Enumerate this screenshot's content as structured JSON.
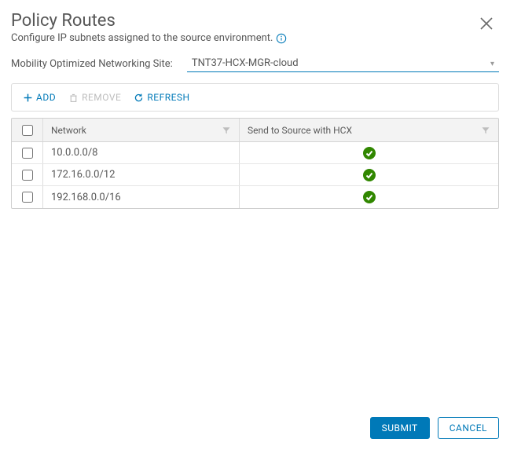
{
  "header": {
    "title": "Policy Routes",
    "subtitle": "Configure IP subnets assigned to the source environment."
  },
  "site": {
    "label": "Mobility Optimized Networking Site:",
    "value": "TNT37-HCX-MGR-cloud"
  },
  "toolbar": {
    "add": "ADD",
    "remove": "REMOVE",
    "refresh": "REFRESH"
  },
  "columns": {
    "network": "Network",
    "hcx": "Send to Source with HCX"
  },
  "rows": [
    {
      "network": "10.0.0.0/8",
      "hcx_ok": true
    },
    {
      "network": "172.16.0.0/12",
      "hcx_ok": true
    },
    {
      "network": "192.168.0.0/16",
      "hcx_ok": true
    }
  ],
  "footer": {
    "submit": "SUBMIT",
    "cancel": "CANCEL"
  },
  "colors": {
    "primary": "#0079b8",
    "success": "#318700",
    "text": "#565656",
    "muted": "#bdbdbd",
    "border": "#dcdcdc",
    "header_bg": "#f3f3f3"
  }
}
